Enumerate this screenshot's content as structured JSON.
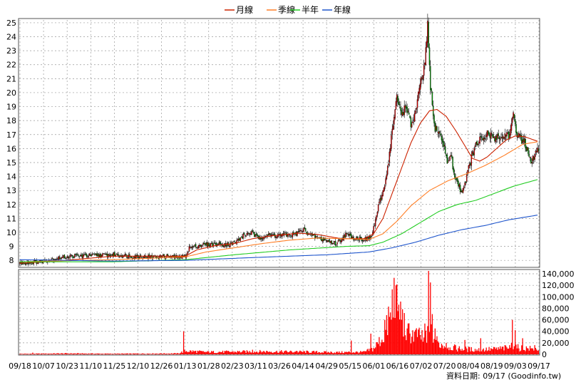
{
  "chart_data": [
    {
      "type": "candlestick",
      "title": "",
      "legend_position": "top",
      "legend": [
        {
          "key": "ma_month",
          "label": "月線",
          "color": "#cc2200"
        },
        {
          "key": "ma_quarter",
          "label": "季線",
          "color": "#ff7f27"
        },
        {
          "key": "ma_half",
          "label": "半年",
          "color": "#22cc22"
        },
        {
          "key": "ma_year",
          "label": "年線",
          "color": "#1f55cc"
        }
      ],
      "ylim": [
        7.5,
        25.2
      ],
      "yticks": [
        8,
        9,
        10,
        11,
        12,
        13,
        14,
        15,
        16,
        17,
        18,
        19,
        20,
        21,
        22,
        23,
        24,
        25
      ],
      "grid": true,
      "up_color": "#dd0000",
      "down_color": "#009900",
      "price_key_points": [
        [
          0,
          7.8
        ],
        [
          20,
          7.9
        ],
        [
          40,
          8.15
        ],
        [
          55,
          8.3
        ],
        [
          80,
          8.35
        ],
        [
          105,
          8.4
        ],
        [
          120,
          8.3
        ],
        [
          135,
          8.25
        ],
        [
          150,
          8.25
        ],
        [
          158,
          8.3
        ],
        [
          170,
          8.2
        ],
        [
          178,
          8.3
        ],
        [
          182,
          8.9
        ],
        [
          195,
          9.1
        ],
        [
          210,
          9.15
        ],
        [
          225,
          9.15
        ],
        [
          232,
          9.3
        ],
        [
          240,
          9.75
        ],
        [
          248,
          10.0
        ],
        [
          256,
          9.6
        ],
        [
          265,
          9.8
        ],
        [
          280,
          9.8
        ],
        [
          295,
          9.85
        ],
        [
          305,
          10.2
        ],
        [
          315,
          9.7
        ],
        [
          325,
          9.5
        ],
        [
          340,
          9.2
        ],
        [
          350,
          9.85
        ],
        [
          360,
          9.6
        ],
        [
          372,
          9.5
        ],
        [
          378,
          9.7
        ],
        [
          385,
          11.8
        ],
        [
          390,
          12.9
        ],
        [
          395,
          14.6
        ],
        [
          400,
          17.3
        ],
        [
          405,
          19.6
        ],
        [
          410,
          18.5
        ],
        [
          415,
          19.1
        ],
        [
          420,
          17.6
        ],
        [
          425,
          18.6
        ],
        [
          430,
          20.5
        ],
        [
          435,
          22.0
        ],
        [
          438,
          24.7
        ],
        [
          441,
          20.5
        ],
        [
          445,
          17.6
        ],
        [
          450,
          17.2
        ],
        [
          455,
          16.3
        ],
        [
          460,
          14.9
        ],
        [
          463,
          15.6
        ],
        [
          466,
          14.2
        ],
        [
          470,
          13.6
        ],
        [
          474,
          12.9
        ],
        [
          478,
          13.5
        ],
        [
          482,
          14.6
        ],
        [
          486,
          15.6
        ],
        [
          490,
          16.2
        ],
        [
          494,
          16.7
        ],
        [
          498,
          16.5
        ],
        [
          502,
          17.1
        ],
        [
          506,
          16.9
        ],
        [
          510,
          16.8
        ],
        [
          514,
          16.9
        ],
        [
          518,
          16.7
        ],
        [
          522,
          17.1
        ],
        [
          526,
          16.9
        ],
        [
          530,
          18.3
        ],
        [
          534,
          17.1
        ],
        [
          538,
          16.7
        ],
        [
          542,
          16.5
        ],
        [
          546,
          15.6
        ],
        [
          549,
          14.9
        ],
        [
          552,
          15.4
        ],
        [
          555,
          15.9
        ],
        [
          557,
          15.8
        ]
      ],
      "ma_key_points": {
        "ma_month": [
          [
            0,
            7.8
          ],
          [
            40,
            7.95
          ],
          [
            100,
            8.3
          ],
          [
            150,
            8.3
          ],
          [
            178,
            8.3
          ],
          [
            190,
            8.75
          ],
          [
            210,
            9.05
          ],
          [
            230,
            9.2
          ],
          [
            250,
            9.55
          ],
          [
            270,
            9.75
          ],
          [
            300,
            9.95
          ],
          [
            320,
            9.85
          ],
          [
            345,
            9.55
          ],
          [
            370,
            9.55
          ],
          [
            380,
            9.9
          ],
          [
            390,
            11.0
          ],
          [
            400,
            12.8
          ],
          [
            410,
            14.6
          ],
          [
            420,
            16.4
          ],
          [
            430,
            17.8
          ],
          [
            440,
            18.7
          ],
          [
            448,
            18.8
          ],
          [
            458,
            18.3
          ],
          [
            468,
            17.3
          ],
          [
            478,
            16.2
          ],
          [
            486,
            15.3
          ],
          [
            494,
            15.1
          ],
          [
            502,
            15.4
          ],
          [
            512,
            16.0
          ],
          [
            522,
            16.6
          ],
          [
            532,
            16.9
          ],
          [
            542,
            16.85
          ],
          [
            557,
            16.5
          ]
        ],
        "ma_quarter": [
          [
            0,
            7.9
          ],
          [
            100,
            8.05
          ],
          [
            178,
            8.25
          ],
          [
            200,
            8.6
          ],
          [
            230,
            8.9
          ],
          [
            260,
            9.2
          ],
          [
            290,
            9.45
          ],
          [
            320,
            9.6
          ],
          [
            350,
            9.55
          ],
          [
            375,
            9.5
          ],
          [
            390,
            9.9
          ],
          [
            405,
            10.8
          ],
          [
            420,
            11.9
          ],
          [
            440,
            13.0
          ],
          [
            460,
            13.7
          ],
          [
            480,
            14.2
          ],
          [
            500,
            14.8
          ],
          [
            520,
            15.5
          ],
          [
            540,
            16.3
          ],
          [
            557,
            16.5
          ]
        ],
        "ma_half": [
          [
            0,
            7.9
          ],
          [
            100,
            7.9
          ],
          [
            178,
            8.05
          ],
          [
            230,
            8.4
          ],
          [
            290,
            8.75
          ],
          [
            350,
            9.0
          ],
          [
            375,
            9.05
          ],
          [
            390,
            9.3
          ],
          [
            410,
            9.9
          ],
          [
            430,
            10.7
          ],
          [
            450,
            11.5
          ],
          [
            470,
            12.0
          ],
          [
            490,
            12.3
          ],
          [
            510,
            12.8
          ],
          [
            530,
            13.3
          ],
          [
            557,
            13.8
          ]
        ],
        "ma_year": [
          [
            0,
            8.05
          ],
          [
            100,
            7.95
          ],
          [
            178,
            8.0
          ],
          [
            250,
            8.2
          ],
          [
            330,
            8.4
          ],
          [
            375,
            8.6
          ],
          [
            400,
            8.9
          ],
          [
            425,
            9.3
          ],
          [
            450,
            9.8
          ],
          [
            475,
            10.2
          ],
          [
            500,
            10.5
          ],
          [
            525,
            10.9
          ],
          [
            557,
            11.25
          ]
        ]
      },
      "x_tick_labels": [
        "09/18",
        "10/07",
        "10/23",
        "11/10",
        "11/25",
        "12/10",
        "12/26",
        "01/13",
        "01/28",
        "02/23",
        "03/11",
        "03/26",
        "04/14",
        "04/29",
        "05/15",
        "06/01",
        "06/16",
        "07/02",
        "07/20",
        "08/04",
        "08/19",
        "09/03",
        "09/17"
      ],
      "source_text": "資料日期: 09/17 (Goodinfo.tw)"
    },
    {
      "type": "bar",
      "name": "volume",
      "color": "#ff0000",
      "ylim": [
        0,
        145000
      ],
      "yticks": [
        0,
        20000,
        40000,
        60000,
        80000,
        100000,
        120000,
        140000
      ],
      "ytick_labels": [
        "0",
        "20,000",
        "40,000",
        "60,000",
        "80,000",
        "100,000",
        "120,000",
        "140,000"
      ],
      "baseline_volume": [
        [
          0,
          800
        ],
        [
          50,
          1500
        ],
        [
          100,
          1000
        ],
        [
          170,
          1500
        ],
        [
          178,
          6000
        ],
        [
          200,
          4000
        ],
        [
          260,
          5000
        ],
        [
          300,
          4500
        ],
        [
          340,
          3500
        ],
        [
          370,
          4000
        ],
        [
          380,
          10000
        ],
        [
          390,
          30000
        ],
        [
          398,
          60000
        ],
        [
          405,
          90000
        ],
        [
          415,
          40000
        ],
        [
          430,
          30000
        ],
        [
          440,
          40000
        ],
        [
          450,
          18000
        ],
        [
          470,
          10000
        ],
        [
          490,
          8000
        ],
        [
          510,
          9000
        ],
        [
          530,
          12000
        ],
        [
          557,
          9000
        ]
      ],
      "volume_spikes": [
        [
          14,
          3000
        ],
        [
          176,
          40000
        ],
        [
          250,
          8000
        ],
        [
          297,
          6000
        ],
        [
          356,
          24000
        ],
        [
          377,
          36000
        ],
        [
          392,
          60000
        ],
        [
          396,
          83000
        ],
        [
          400,
          113000
        ],
        [
          402,
          133000
        ],
        [
          404,
          120000
        ],
        [
          406,
          75000
        ],
        [
          410,
          60000
        ],
        [
          416,
          45000
        ],
        [
          427,
          30000
        ],
        [
          433,
          22000
        ],
        [
          437,
          20000
        ],
        [
          439,
          145000
        ],
        [
          441,
          125000
        ],
        [
          443,
          70000
        ],
        [
          446,
          45000
        ],
        [
          458,
          20000
        ],
        [
          462,
          12000
        ],
        [
          478,
          25000
        ],
        [
          495,
          28000
        ],
        [
          528,
          20000
        ],
        [
          529,
          60000
        ],
        [
          532,
          42000
        ],
        [
          540,
          28000
        ],
        [
          551,
          10000
        ],
        [
          553,
          16000
        ]
      ]
    }
  ]
}
